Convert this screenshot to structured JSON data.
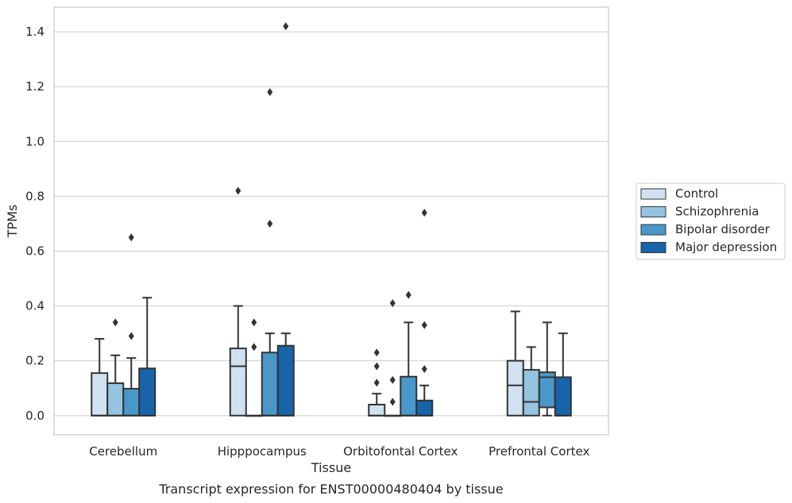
{
  "chart_data": {
    "type": "box",
    "title": "",
    "caption": "Transcript expression for ENST00000480404 by tissue",
    "xlabel": "Tissue",
    "ylabel": "TPMs",
    "categories": [
      "Cerebellum",
      "Hipppocampus",
      "Orbitofontal Cortex",
      "Prefrontal Cortex"
    ],
    "ylim": [
      -0.07,
      1.49
    ],
    "yticks": [
      0.0,
      0.2,
      0.4,
      0.6,
      0.8,
      1.0,
      1.2,
      1.4
    ],
    "ytick_labels": [
      "0.0",
      "0.2",
      "0.4",
      "0.6",
      "0.8",
      "1.0",
      "1.2",
      "1.4"
    ],
    "grid": true,
    "legend_position": "right",
    "series": [
      {
        "name": "Control",
        "color": "#d0e1f2",
        "boxes": [
          {
            "whisker_low": 0.0,
            "q1": 0.0,
            "median": 0.0,
            "q3": 0.155,
            "whisker_high": 0.28,
            "outliers": []
          },
          {
            "whisker_low": 0.0,
            "q1": 0.0,
            "median": 0.18,
            "q3": 0.245,
            "whisker_high": 0.4,
            "outliers": [
              0.82
            ]
          },
          {
            "whisker_low": 0.0,
            "q1": 0.0,
            "median": 0.0,
            "q3": 0.04,
            "whisker_high": 0.08,
            "outliers": [
              0.12,
              0.18,
              0.23
            ]
          },
          {
            "whisker_low": 0.0,
            "q1": 0.0,
            "median": 0.11,
            "q3": 0.2,
            "whisker_high": 0.38,
            "outliers": []
          }
        ]
      },
      {
        "name": "Schizophrenia",
        "color": "#94c4df",
        "boxes": [
          {
            "whisker_low": 0.0,
            "q1": 0.0,
            "median": 0.0,
            "q3": 0.118,
            "whisker_high": 0.22,
            "outliers": [
              0.34
            ]
          },
          {
            "whisker_low": 0.0,
            "q1": 0.0,
            "median": 0.0,
            "q3": 0.0,
            "whisker_high": 0.0,
            "outliers": [
              0.25,
              0.34
            ]
          },
          {
            "whisker_low": 0.0,
            "q1": 0.0,
            "median": 0.0,
            "q3": 0.0,
            "whisker_high": 0.0,
            "outliers": [
              0.05,
              0.13,
              0.41
            ]
          },
          {
            "whisker_low": 0.0,
            "q1": 0.0,
            "median": 0.05,
            "q3": 0.167,
            "whisker_high": 0.25,
            "outliers": []
          }
        ]
      },
      {
        "name": "Bipolar disorder",
        "color": "#4a98c9",
        "boxes": [
          {
            "whisker_low": 0.0,
            "q1": 0.0,
            "median": 0.0,
            "q3": 0.098,
            "whisker_high": 0.21,
            "outliers": [
              0.29,
              0.65
            ]
          },
          {
            "whisker_low": 0.0,
            "q1": 0.0,
            "median": 0.0,
            "q3": 0.23,
            "whisker_high": 0.3,
            "outliers": [
              0.7,
              1.18
            ]
          },
          {
            "whisker_low": 0.0,
            "q1": 0.0,
            "median": 0.0,
            "q3": 0.142,
            "whisker_high": 0.34,
            "outliers": [
              0.44
            ]
          },
          {
            "whisker_low": 0.0,
            "q1": 0.03,
            "median": 0.14,
            "q3": 0.158,
            "whisker_high": 0.34,
            "outliers": []
          }
        ]
      },
      {
        "name": "Major depression",
        "color": "#1764ab",
        "boxes": [
          {
            "whisker_low": 0.0,
            "q1": 0.0,
            "median": 0.0,
            "q3": 0.172,
            "whisker_high": 0.43,
            "outliers": []
          },
          {
            "whisker_low": 0.0,
            "q1": 0.0,
            "median": 0.0,
            "q3": 0.255,
            "whisker_high": 0.3,
            "outliers": [
              1.42
            ]
          },
          {
            "whisker_low": 0.0,
            "q1": 0.0,
            "median": 0.0,
            "q3": 0.055,
            "whisker_high": 0.11,
            "outliers": [
              0.17,
              0.33,
              0.74
            ]
          },
          {
            "whisker_low": 0.0,
            "q1": 0.0,
            "median": 0.0,
            "q3": 0.14,
            "whisker_high": 0.3,
            "outliers": []
          }
        ]
      }
    ]
  }
}
